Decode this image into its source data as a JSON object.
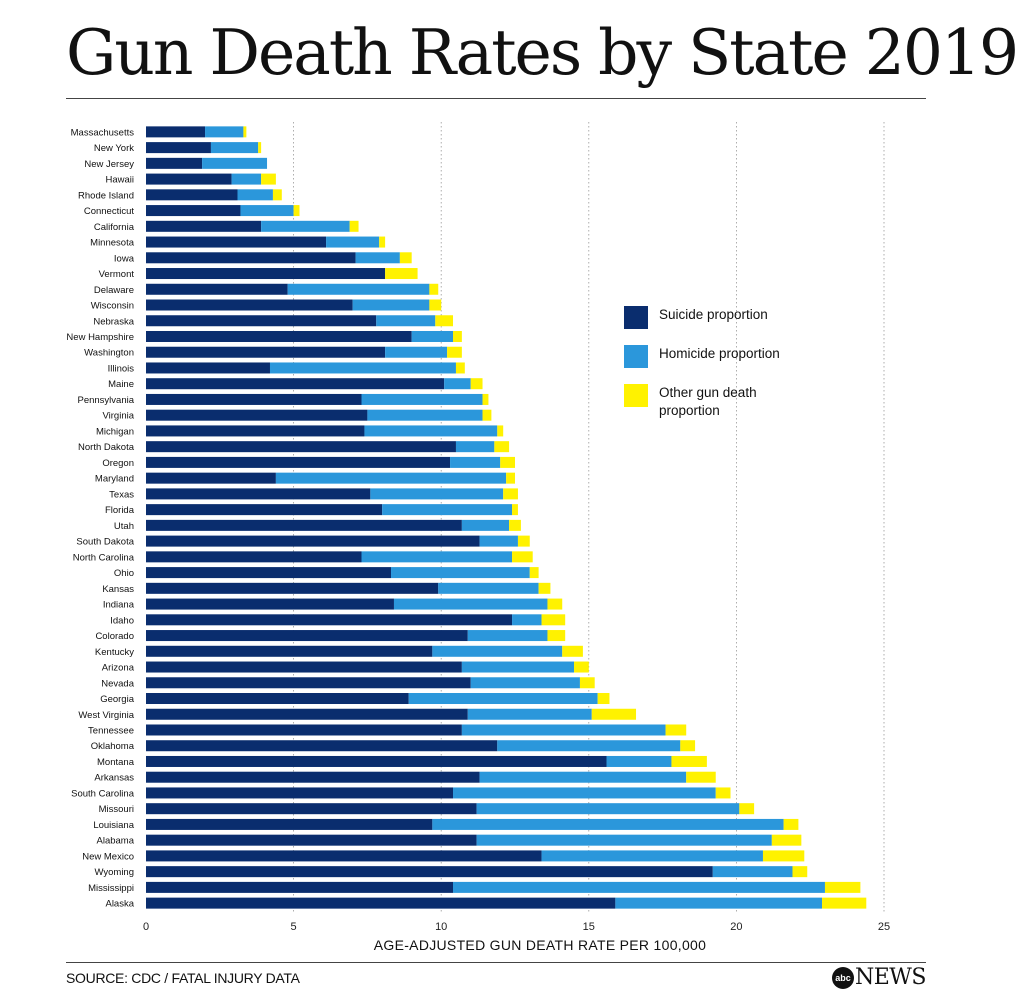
{
  "title": "Gun Death Rates by State 2019",
  "source": "SOURCE: CDC / FATAL INJURY DATA",
  "logo": {
    "abc": "abc",
    "news": "NEWS"
  },
  "legend": [
    {
      "label": "Suicide proportion",
      "color": "#0a2d6e"
    },
    {
      "label": "Homicide proportion",
      "color": "#2b97db"
    },
    {
      "label": "Other gun death proportion",
      "color": "#fff200"
    }
  ],
  "chart_data": {
    "type": "bar",
    "orientation": "horizontal",
    "stacked": true,
    "title": "Gun Death Rates by State 2019",
    "xlabel": "AGE-ADJUSTED GUN DEATH RATE PER 100,000",
    "ylabel": "",
    "xlim": [
      0,
      25
    ],
    "xticks": [
      0,
      5,
      10,
      15,
      20,
      25
    ],
    "grid": "vertical dotted",
    "legend_position": "right",
    "colors": [
      "#0a2d6e",
      "#2b97db",
      "#fff200"
    ],
    "categories": [
      "Massachusetts",
      "New York",
      "New Jersey",
      "Hawaii",
      "Rhode Island",
      "Connecticut",
      "California",
      "Minnesota",
      "Iowa",
      "Vermont",
      "Delaware",
      "Wisconsin",
      "Nebraska",
      "New Hampshire",
      "Washington",
      "Illinois",
      "Maine",
      "Pennsylvania",
      "Virginia",
      "Michigan",
      "North Dakota",
      "Oregon",
      "Maryland",
      "Texas",
      "Florida",
      "Utah",
      "South Dakota",
      "North Carolina",
      "Ohio",
      "Kansas",
      "Indiana",
      "Idaho",
      "Colorado",
      "Kentucky",
      "Arizona",
      "Nevada",
      "Georgia",
      "West Virginia",
      "Tennessee",
      "Oklahoma",
      "Montana",
      "Arkansas",
      "South Carolina",
      "Missouri",
      "Louisiana",
      "Alabama",
      "New Mexico",
      "Wyoming",
      "Mississippi",
      "Alaska"
    ],
    "series": [
      {
        "name": "Suicide proportion",
        "values": [
          2.0,
          2.2,
          1.9,
          2.9,
          3.1,
          3.2,
          3.9,
          6.1,
          7.1,
          8.1,
          4.8,
          7.0,
          7.8,
          9.0,
          8.1,
          4.2,
          10.1,
          7.3,
          7.5,
          7.4,
          10.5,
          10.3,
          4.4,
          7.6,
          8.0,
          10.7,
          11.3,
          7.3,
          8.3,
          9.9,
          8.4,
          12.4,
          10.9,
          9.7,
          10.7,
          11.0,
          8.9,
          10.9,
          10.7,
          11.9,
          15.6,
          11.3,
          10.4,
          11.2,
          9.7,
          11.2,
          13.4,
          19.2,
          10.4,
          15.9
        ]
      },
      {
        "name": "Homicide proportion",
        "values": [
          1.3,
          1.6,
          2.2,
          1.0,
          1.2,
          1.8,
          3.0,
          1.8,
          1.5,
          0.0,
          4.8,
          2.6,
          2.0,
          1.4,
          2.1,
          6.3,
          0.9,
          4.1,
          3.9,
          4.5,
          1.3,
          1.7,
          7.8,
          4.5,
          4.4,
          1.6,
          1.3,
          5.1,
          4.7,
          3.4,
          5.2,
          1.0,
          2.7,
          4.4,
          3.8,
          3.7,
          6.4,
          4.2,
          6.9,
          6.2,
          2.2,
          7.0,
          8.9,
          8.9,
          11.9,
          10.0,
          7.5,
          2.7,
          12.6,
          7.0
        ]
      },
      {
        "name": "Other gun death proportion",
        "values": [
          0.1,
          0.1,
          0.0,
          0.5,
          0.3,
          0.2,
          0.3,
          0.2,
          0.4,
          1.1,
          0.3,
          0.4,
          0.6,
          0.3,
          0.5,
          0.3,
          0.4,
          0.2,
          0.3,
          0.2,
          0.5,
          0.5,
          0.3,
          0.5,
          0.2,
          0.4,
          0.4,
          0.7,
          0.3,
          0.4,
          0.5,
          0.8,
          0.6,
          0.7,
          0.5,
          0.5,
          0.4,
          1.5,
          0.7,
          0.5,
          1.2,
          1.0,
          0.5,
          0.5,
          0.5,
          1.0,
          1.4,
          0.5,
          1.2,
          1.5
        ]
      }
    ]
  }
}
